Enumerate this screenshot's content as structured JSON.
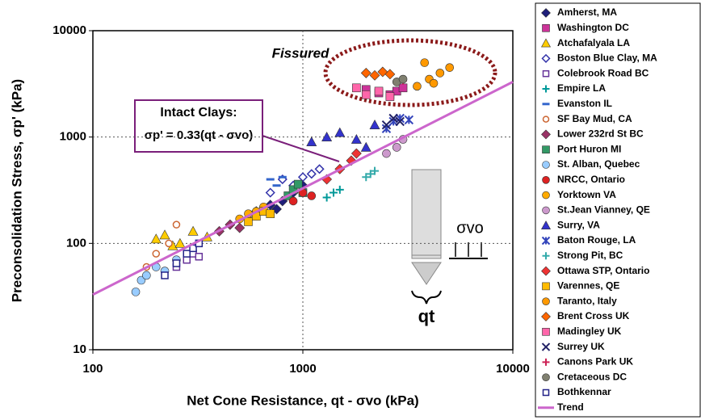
{
  "chart_data": {
    "type": "scatter",
    "x_label": "Net Cone Resistance, qt - σvo (kPa)",
    "y_label": "Preconsolidation Stress, σp' (kPa)",
    "log_x": true,
    "log_y": true,
    "grid": true,
    "xlim": [
      100,
      10000
    ],
    "ylim": [
      10,
      10000
    ],
    "xticks": [
      100,
      1000,
      10000
    ],
    "yticks": [
      10,
      100,
      1000,
      10000
    ],
    "annotations": [
      "Fissured",
      "Intact Clays:",
      "σp' = 0.33(qt - σvo)",
      "σvo",
      "qt"
    ],
    "series": [
      {
        "name": "Amherst, MA",
        "color": "#1f1f7a",
        "marker": "diamond",
        "x": [
          600,
          700,
          800,
          900,
          1000,
          750
        ],
        "values": [
          200,
          230,
          250,
          300,
          350,
          210
        ]
      },
      {
        "name": "Washington DC",
        "color": "#cc3399",
        "marker": "square",
        "x": [
          2000,
          2300,
          2600,
          2800,
          3000
        ],
        "values": [
          2800,
          2600,
          2500,
          2700,
          2900
        ]
      },
      {
        "name": "Atchafalyala LA",
        "color": "#ffcc00",
        "marker": "triangle",
        "x": [
          200,
          220,
          240,
          260,
          300,
          350
        ],
        "values": [
          110,
          120,
          95,
          100,
          130,
          115
        ]
      },
      {
        "name": "Boston Blue Clay, MA",
        "color": "#3333aa",
        "marker": "diamond-open",
        "x": [
          700,
          800,
          900,
          1000,
          1100,
          1200
        ],
        "values": [
          300,
          400,
          350,
          420,
          450,
          500
        ]
      },
      {
        "name": "Colebrook Road BC",
        "color": "#663399",
        "marker": "square-open",
        "x": [
          250,
          280,
          300,
          320
        ],
        "values": [
          60,
          70,
          80,
          75
        ]
      },
      {
        "name": "Empire LA",
        "color": "#009999",
        "marker": "plus",
        "x": [
          1300,
          1400,
          1500
        ],
        "values": [
          270,
          300,
          320
        ]
      },
      {
        "name": "Evanston IL",
        "color": "#3366cc",
        "marker": "dash",
        "x": [
          700,
          750,
          800
        ],
        "values": [
          400,
          350,
          420
        ]
      },
      {
        "name": "SF Bay Mud, CA",
        "color": "#cc6633",
        "marker": "circle-open",
        "x": [
          180,
          200,
          230,
          250
        ],
        "values": [
          60,
          80,
          100,
          150
        ]
      },
      {
        "name": "Lower 232rd St BC",
        "color": "#993366",
        "marker": "diamond",
        "x": [
          400,
          450,
          500,
          550
        ],
        "values": [
          130,
          150,
          140,
          170
        ]
      },
      {
        "name": "Port Huron MI",
        "color": "#339966",
        "marker": "square",
        "x": [
          850,
          900,
          950,
          1000
        ],
        "values": [
          280,
          320,
          360,
          300
        ]
      },
      {
        "name": "St. Alban, Quebec",
        "color": "#99ccff",
        "marker": "circle",
        "x": [
          160,
          170,
          180,
          200,
          220,
          250
        ],
        "values": [
          35,
          45,
          50,
          60,
          55,
          70
        ]
      },
      {
        "name": "NRCC, Ontario",
        "color": "#dd2222",
        "marker": "circle",
        "x": [
          900,
          1000,
          1100
        ],
        "values": [
          250,
          300,
          280
        ]
      },
      {
        "name": "Yorktown VA",
        "color": "#ffaa00",
        "marker": "circle",
        "x": [
          500,
          550,
          600,
          650
        ],
        "values": [
          170,
          190,
          200,
          220
        ]
      },
      {
        "name": "St.Jean Vianney, QE",
        "color": "#cc99cc",
        "marker": "circle",
        "x": [
          2800,
          3000,
          2500
        ],
        "values": [
          800,
          950,
          700
        ]
      },
      {
        "name": "Surry, VA",
        "color": "#3333cc",
        "marker": "triangle",
        "x": [
          1100,
          1300,
          1500,
          1800,
          2000,
          2200
        ],
        "values": [
          900,
          1000,
          1100,
          950,
          800,
          1300
        ]
      },
      {
        "name": "Baton Rouge, LA",
        "color": "#3344bb",
        "marker": "star",
        "x": [
          2500,
          2700,
          2900,
          3200
        ],
        "values": [
          1200,
          1400,
          1500,
          1450
        ]
      },
      {
        "name": "Strong Pit, BC",
        "color": "#33aaaa",
        "marker": "plus",
        "x": [
          2000,
          2100,
          2200
        ],
        "values": [
          420,
          450,
          480
        ]
      },
      {
        "name": "Ottawa STP, Ontario",
        "color": "#ee3333",
        "marker": "diamond",
        "x": [
          1300,
          1500,
          1700,
          1800
        ],
        "values": [
          400,
          500,
          600,
          700
        ]
      },
      {
        "name": "Varennes, QE",
        "color": "#ffbb00",
        "marker": "square",
        "x": [
          550,
          600,
          650,
          700
        ],
        "values": [
          160,
          180,
          200,
          190
        ]
      },
      {
        "name": "Taranto, Italy",
        "color": "#ff9900",
        "marker": "circle",
        "x": [
          3500,
          4000,
          4500,
          5000,
          3800,
          4200
        ],
        "values": [
          3000,
          3500,
          4000,
          4500,
          5000,
          3200
        ]
      },
      {
        "name": "Brent Cross UK",
        "color": "#ff6600",
        "marker": "diamond",
        "x": [
          2000,
          2200,
          2400,
          2600
        ],
        "values": [
          4000,
          3800,
          4100,
          3900
        ]
      },
      {
        "name": "Madingley UK",
        "color": "#ff66aa",
        "marker": "square",
        "x": [
          1800,
          2000,
          2300,
          2600
        ],
        "values": [
          2900,
          2500,
          2700,
          2400
        ]
      },
      {
        "name": "Surrey UK",
        "color": "#222266",
        "marker": "x",
        "x": [
          2500,
          2700,
          2900
        ],
        "values": [
          1300,
          1500,
          1400
        ]
      },
      {
        "name": "Canons Park UK",
        "color": "#cc2255",
        "marker": "plus",
        "x": [
          2800,
          3000
        ],
        "values": [
          3300,
          3400
        ]
      },
      {
        "name": "Cretaceous DC",
        "color": "#808070",
        "marker": "circle",
        "x": [
          2800,
          3000
        ],
        "values": [
          3300,
          3500
        ]
      },
      {
        "name": "Bothkennar",
        "color": "#222288",
        "marker": "square-open",
        "x": [
          220,
          250,
          280,
          300,
          320
        ],
        "values": [
          50,
          65,
          80,
          90,
          100
        ]
      },
      {
        "name": "Trend",
        "color": "#cc66cc",
        "marker": "line",
        "x": [
          100,
          10000
        ],
        "values": [
          33,
          3300
        ]
      }
    ]
  }
}
